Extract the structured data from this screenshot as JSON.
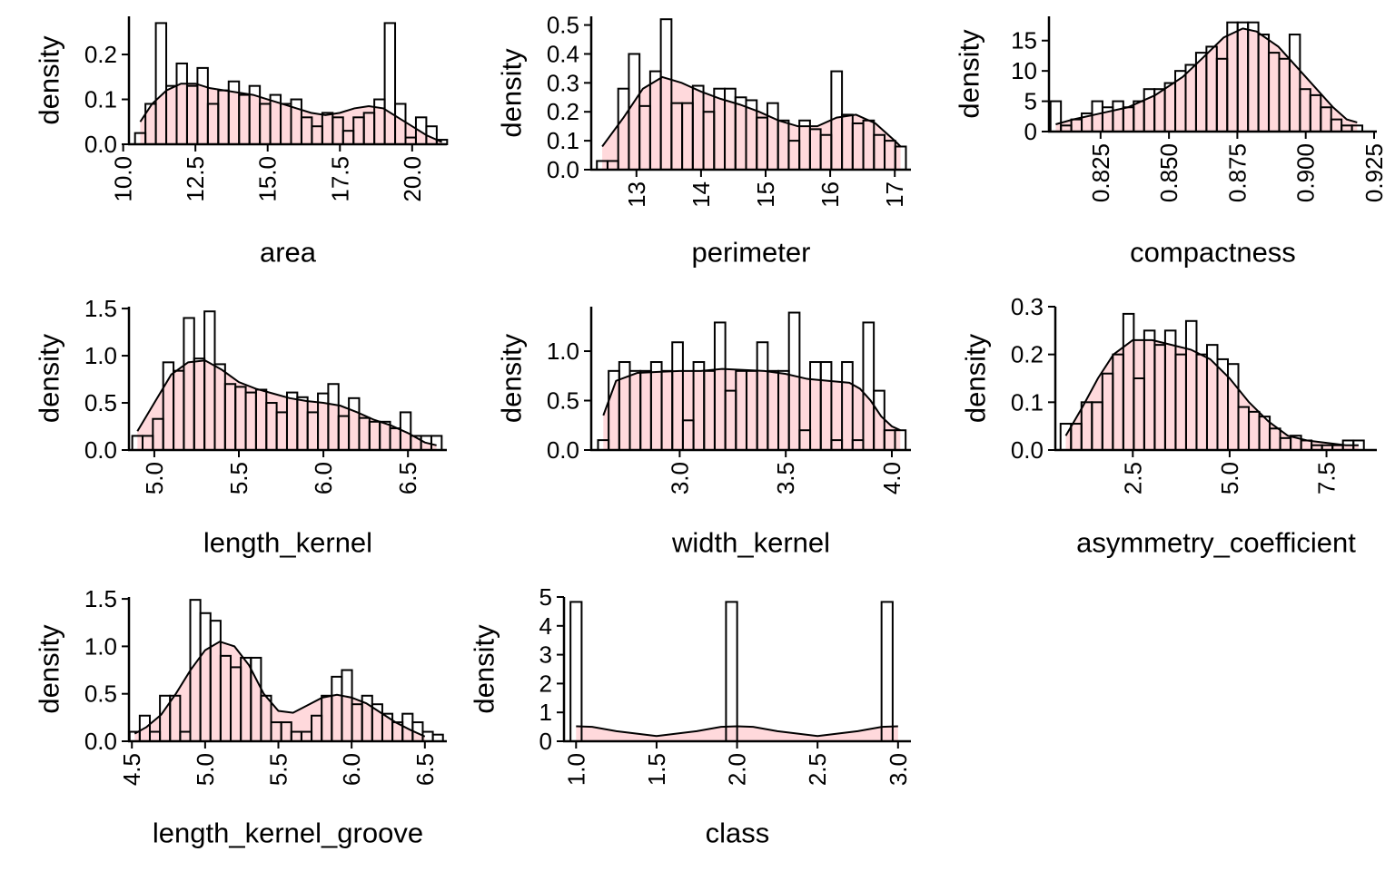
{
  "colors": {
    "bar_fill": "#ffffff",
    "bar_stroke": "#000000",
    "density_fill": "#ffd9dc",
    "density_stroke": "#000000",
    "background": "#ffffff"
  },
  "chart_data": [
    {
      "type": "bar",
      "overlay": "density",
      "xlabel": "area",
      "ylabel": "density",
      "xlim": [
        10.2,
        21.2
      ],
      "ylim": [
        0,
        0.285
      ],
      "xticks": [
        "10.0",
        "12.5",
        "15.0",
        "17.5",
        "20.0"
      ],
      "yticks": [
        "0.0",
        "0.1",
        "0.2"
      ],
      "grid": false,
      "bins": {
        "x": [
          10.59,
          10.95,
          11.31,
          11.67,
          12.03,
          12.39,
          12.75,
          13.11,
          13.47,
          13.83,
          14.19,
          14.55,
          14.91,
          15.27,
          15.63,
          15.99,
          16.35,
          16.71,
          17.07,
          17.43,
          17.79,
          18.15,
          18.51,
          18.87,
          19.23,
          19.59,
          19.95,
          20.31,
          20.67,
          21.03
        ],
        "density": [
          0.025,
          0.09,
          0.27,
          0.13,
          0.18,
          0.13,
          0.17,
          0.09,
          0.12,
          0.14,
          0.11,
          0.13,
          0.09,
          0.11,
          0.09,
          0.1,
          0.06,
          0.04,
          0.07,
          0.06,
          0.03,
          0.06,
          0.07,
          0.1,
          0.27,
          0.09,
          0.015,
          0.06,
          0.04,
          0.01
        ]
      },
      "density_curve": {
        "x": [
          10.59,
          11.0,
          11.5,
          12.0,
          12.5,
          13.0,
          13.5,
          14.0,
          14.5,
          15.0,
          15.5,
          16.0,
          16.5,
          17.0,
          17.5,
          18.0,
          18.5,
          19.0,
          19.5,
          20.0,
          20.5,
          21.03
        ],
        "y": [
          0.05,
          0.09,
          0.12,
          0.135,
          0.135,
          0.125,
          0.12,
          0.115,
          0.11,
          0.1,
          0.09,
          0.08,
          0.07,
          0.065,
          0.07,
          0.08,
          0.085,
          0.08,
          0.06,
          0.04,
          0.02,
          0.005
        ]
      }
    },
    {
      "type": "bar",
      "overlay": "density",
      "xlabel": "perimeter",
      "ylabel": "density",
      "xlim": [
        12.3,
        17.25
      ],
      "ylim": [
        0,
        0.53
      ],
      "xticks": [
        "13",
        "14",
        "15",
        "16",
        "17"
      ],
      "yticks": [
        "0.0",
        "0.1",
        "0.2",
        "0.3",
        "0.4",
        "0.5"
      ],
      "grid": false,
      "bins": {
        "x": [
          12.47,
          12.635,
          12.8,
          12.965,
          13.13,
          13.295,
          13.46,
          13.625,
          13.79,
          13.955,
          14.12,
          14.285,
          14.45,
          14.615,
          14.78,
          14.945,
          15.11,
          15.275,
          15.44,
          15.605,
          15.77,
          15.935,
          16.1,
          16.265,
          16.43,
          16.595,
          16.76,
          16.925,
          17.09
        ],
        "density": [
          0.03,
          0.03,
          0.28,
          0.4,
          0.22,
          0.34,
          0.52,
          0.23,
          0.23,
          0.29,
          0.2,
          0.28,
          0.28,
          0.25,
          0.24,
          0.18,
          0.23,
          0.17,
          0.1,
          0.17,
          0.14,
          0.12,
          0.34,
          0.19,
          0.16,
          0.17,
          0.12,
          0.1,
          0.08
        ]
      },
      "density_curve": {
        "x": [
          12.47,
          12.8,
          13.1,
          13.4,
          13.7,
          14.0,
          14.3,
          14.6,
          14.9,
          15.2,
          15.5,
          15.8,
          16.1,
          16.4,
          16.7,
          17.0,
          17.09
        ],
        "y": [
          0.08,
          0.18,
          0.28,
          0.32,
          0.3,
          0.27,
          0.245,
          0.225,
          0.2,
          0.17,
          0.15,
          0.15,
          0.18,
          0.19,
          0.16,
          0.1,
          0.08
        ]
      }
    },
    {
      "type": "bar",
      "overlay": "density",
      "xlabel": "compactness",
      "ylabel": "density",
      "xlim": [
        0.80613,
        0.926
      ],
      "ylim": [
        0,
        19
      ],
      "xticks": [
        "0.825",
        "0.850",
        "0.875",
        "0.900",
        "0.925"
      ],
      "yticks": [
        "0",
        "5",
        "10",
        "15"
      ],
      "grid": false,
      "bins": {
        "x": [
          0.8086,
          0.8124,
          0.8162,
          0.82,
          0.8238,
          0.8276,
          0.8314,
          0.8352,
          0.839,
          0.8428,
          0.8466,
          0.8504,
          0.8542,
          0.858,
          0.8618,
          0.8656,
          0.8694,
          0.8732,
          0.877,
          0.8808,
          0.8846,
          0.8884,
          0.8922,
          0.896,
          0.8998,
          0.9036,
          0.9074,
          0.9112,
          0.915,
          0.9188
        ],
        "density": [
          5,
          1,
          2,
          3,
          5,
          4,
          5,
          4,
          5,
          7,
          7,
          8,
          10,
          11,
          13,
          14,
          12,
          18,
          18,
          18,
          16,
          13,
          12,
          16,
          7,
          6,
          4,
          2,
          1,
          1
        ]
      },
      "density_curve": {
        "x": [
          0.8086,
          0.815,
          0.825,
          0.835,
          0.845,
          0.855,
          0.862,
          0.87,
          0.877,
          0.882,
          0.89,
          0.9,
          0.91,
          0.915,
          0.9188
        ],
        "y": [
          1.2,
          2,
          3,
          4,
          6,
          9,
          12,
          15.5,
          17,
          16.5,
          14,
          9,
          4,
          2,
          1.5
        ]
      }
    },
    {
      "type": "bar",
      "overlay": "density",
      "xlabel": "length_kernel",
      "ylabel": "density",
      "xlim": [
        4.85,
        6.73
      ],
      "ylim": [
        0,
        1.52
      ],
      "xticks": [
        "5.0",
        "5.5",
        "6.0",
        "6.5"
      ],
      "yticks": [
        "0.0",
        "0.5",
        "1.0",
        "1.5"
      ],
      "grid": false,
      "bins": {
        "x": [
          4.9,
          4.961,
          5.022,
          5.083,
          5.144,
          5.205,
          5.266,
          5.327,
          5.388,
          5.449,
          5.51,
          5.571,
          5.632,
          5.693,
          5.754,
          5.815,
          5.876,
          5.937,
          5.998,
          6.059,
          6.12,
          6.181,
          6.242,
          6.303,
          6.364,
          6.425,
          6.486,
          6.547,
          6.608,
          6.669
        ],
        "density": [
          0.15,
          0.15,
          0.33,
          0.93,
          0.84,
          1.4,
          0.97,
          1.47,
          0.91,
          0.7,
          0.67,
          0.61,
          0.64,
          0.5,
          0.4,
          0.61,
          0.56,
          0.4,
          0.6,
          0.7,
          0.36,
          0.55,
          0.34,
          0.3,
          0.3,
          0.23,
          0.4,
          0.15,
          0.15,
          0.15
        ]
      },
      "density_curve": {
        "x": [
          4.9,
          5.0,
          5.1,
          5.2,
          5.3,
          5.4,
          5.5,
          5.6,
          5.7,
          5.8,
          5.9,
          6.0,
          6.1,
          6.2,
          6.3,
          6.4,
          6.5,
          6.6,
          6.669
        ],
        "y": [
          0.2,
          0.5,
          0.8,
          0.93,
          0.95,
          0.85,
          0.72,
          0.65,
          0.6,
          0.55,
          0.52,
          0.5,
          0.47,
          0.4,
          0.32,
          0.26,
          0.18,
          0.08,
          0.05
        ]
      }
    },
    {
      "type": "bar",
      "overlay": "density",
      "xlabel": "width_kernel",
      "ylabel": "density",
      "xlim": [
        2.583,
        4.09
      ],
      "ylim": [
        0,
        1.45
      ],
      "xticks": [
        "3.0",
        "3.5",
        "4.0"
      ],
      "yticks": [
        "0.0",
        "0.5",
        "1.0"
      ],
      "grid": false,
      "bins": {
        "x": [
          2.64,
          2.69,
          2.74,
          2.79,
          2.84,
          2.89,
          2.94,
          2.99,
          3.04,
          3.09,
          3.14,
          3.19,
          3.24,
          3.29,
          3.34,
          3.39,
          3.44,
          3.49,
          3.54,
          3.59,
          3.64,
          3.69,
          3.74,
          3.79,
          3.84,
          3.89,
          3.94,
          3.99,
          4.04
        ],
        "density": [
          0.1,
          0.8,
          0.89,
          0.8,
          0.8,
          0.89,
          0.8,
          1.09,
          0.3,
          0.89,
          0.8,
          1.29,
          0.6,
          0.8,
          0.8,
          1.09,
          0.8,
          0.8,
          1.39,
          0.2,
          0.89,
          0.89,
          0.1,
          0.89,
          0.1,
          1.29,
          0.6,
          0.2,
          0.2
        ]
      },
      "density_curve": {
        "x": [
          2.64,
          2.7,
          2.8,
          2.9,
          3.0,
          3.1,
          3.2,
          3.3,
          3.4,
          3.5,
          3.6,
          3.7,
          3.8,
          3.85,
          3.9,
          3.95,
          4.0,
          4.04
        ],
        "y": [
          0.35,
          0.7,
          0.78,
          0.79,
          0.8,
          0.8,
          0.82,
          0.81,
          0.8,
          0.77,
          0.72,
          0.7,
          0.68,
          0.62,
          0.5,
          0.34,
          0.24,
          0.2
        ]
      }
    },
    {
      "type": "bar",
      "overlay": "density",
      "xlabel": "asymmetry_coefficient",
      "ylabel": "density",
      "xlim": [
        0.5,
        8.8
      ],
      "ylim": [
        0,
        0.3
      ],
      "xticks": [
        "2.5",
        "5.0",
        "7.5"
      ],
      "yticks": [
        "0.0",
        "0.1",
        "0.2",
        "0.3"
      ],
      "grid": false,
      "bins": {
        "x": [
          0.77,
          1.04,
          1.31,
          1.58,
          1.85,
          2.12,
          2.39,
          2.66,
          2.93,
          3.2,
          3.47,
          3.74,
          4.01,
          4.28,
          4.55,
          4.82,
          5.09,
          5.36,
          5.63,
          5.9,
          6.17,
          6.44,
          6.71,
          6.98,
          7.25,
          7.52,
          7.79,
          8.06,
          8.33
        ],
        "density": [
          0.055,
          0.055,
          0.1,
          0.1,
          0.16,
          0.2,
          0.285,
          0.15,
          0.25,
          0.22,
          0.25,
          0.2,
          0.27,
          0.2,
          0.22,
          0.19,
          0.18,
          0.09,
          0.08,
          0.07,
          0.045,
          0.025,
          0.03,
          0.02,
          0.01,
          0.01,
          0.01,
          0.02,
          0.02
        ]
      },
      "density_curve": {
        "x": [
          0.77,
          1.2,
          1.6,
          2.0,
          2.5,
          3.0,
          3.5,
          4.0,
          4.5,
          5.0,
          5.5,
          6.0,
          6.5,
          7.0,
          7.5,
          8.0,
          8.33
        ],
        "y": [
          0.03,
          0.09,
          0.15,
          0.2,
          0.23,
          0.23,
          0.22,
          0.21,
          0.19,
          0.15,
          0.1,
          0.06,
          0.03,
          0.02,
          0.015,
          0.01,
          0.01
        ]
      }
    },
    {
      "type": "bar",
      "overlay": "density",
      "xlabel": "length_kernel_groove",
      "ylabel": "density",
      "xlim": [
        4.48,
        6.65
      ],
      "ylim": [
        0,
        1.52
      ],
      "xticks": [
        "4.5",
        "5.0",
        "5.5",
        "6.0",
        "6.5"
      ],
      "yticks": [
        "0.0",
        "0.5",
        "1.0",
        "1.5"
      ],
      "grid": false,
      "bins": {
        "x": [
          4.519,
          4.588,
          4.657,
          4.726,
          4.795,
          4.864,
          4.933,
          5.002,
          5.071,
          5.14,
          5.209,
          5.278,
          5.347,
          5.416,
          5.485,
          5.554,
          5.623,
          5.692,
          5.761,
          5.83,
          5.899,
          5.968,
          6.037,
          6.106,
          6.175,
          6.244,
          6.313,
          6.382,
          6.451,
          6.52,
          6.589
        ],
        "density": [
          0.1,
          0.27,
          0.1,
          0.48,
          0.48,
          0.1,
          1.49,
          1.35,
          1.27,
          0.9,
          0.78,
          0.88,
          0.88,
          0.48,
          0.2,
          0.2,
          0.1,
          0.1,
          0.27,
          0.48,
          0.68,
          0.75,
          0.39,
          0.48,
          0.39,
          0.29,
          0.2,
          0.29,
          0.2,
          0.1,
          0.07
        ]
      },
      "density_curve": {
        "x": [
          4.519,
          4.6,
          4.7,
          4.8,
          4.9,
          5.0,
          5.1,
          5.2,
          5.3,
          5.4,
          5.5,
          5.6,
          5.7,
          5.8,
          5.9,
          6.0,
          6.1,
          6.2,
          6.3,
          6.4,
          6.5
        ],
        "y": [
          0.08,
          0.15,
          0.28,
          0.5,
          0.75,
          0.96,
          1.05,
          1.0,
          0.8,
          0.5,
          0.32,
          0.3,
          0.38,
          0.46,
          0.49,
          0.46,
          0.4,
          0.3,
          0.2,
          0.12,
          0.05
        ]
      }
    },
    {
      "type": "bar",
      "overlay": "density",
      "xlabel": "class",
      "ylabel": "density",
      "xlim": [
        0.925,
        3.08
      ],
      "ylim": [
        0,
        5
      ],
      "xticks": [
        "1.0",
        "1.5",
        "2.0",
        "2.5",
        "3.0"
      ],
      "yticks": [
        "0",
        "1",
        "2",
        "3",
        "4",
        "5"
      ],
      "grid": false,
      "bins": {
        "x": [
          1.0,
          1.069,
          1.138,
          1.207,
          1.276,
          1.345,
          1.414,
          1.483,
          1.552,
          1.621,
          1.69,
          1.759,
          1.828,
          1.897,
          1.966,
          2.035,
          2.104,
          2.173,
          2.242,
          2.311,
          2.38,
          2.449,
          2.518,
          2.587,
          2.656,
          2.725,
          2.794,
          2.863,
          2.932
        ],
        "density": [
          4.83,
          0,
          0,
          0,
          0,
          0,
          0,
          0,
          0,
          0,
          0,
          0,
          0,
          0,
          4.83,
          0,
          0,
          0,
          0,
          0,
          0,
          0,
          0,
          0,
          0,
          0,
          0,
          0,
          4.83
        ]
      },
      "density_curve": {
        "x": [
          1.0,
          1.1,
          1.25,
          1.5,
          1.75,
          1.9,
          2.0,
          2.1,
          2.25,
          2.5,
          2.75,
          2.9,
          3.0
        ],
        "y": [
          0.52,
          0.5,
          0.35,
          0.18,
          0.35,
          0.5,
          0.52,
          0.5,
          0.35,
          0.18,
          0.35,
          0.5,
          0.52
        ]
      }
    }
  ]
}
